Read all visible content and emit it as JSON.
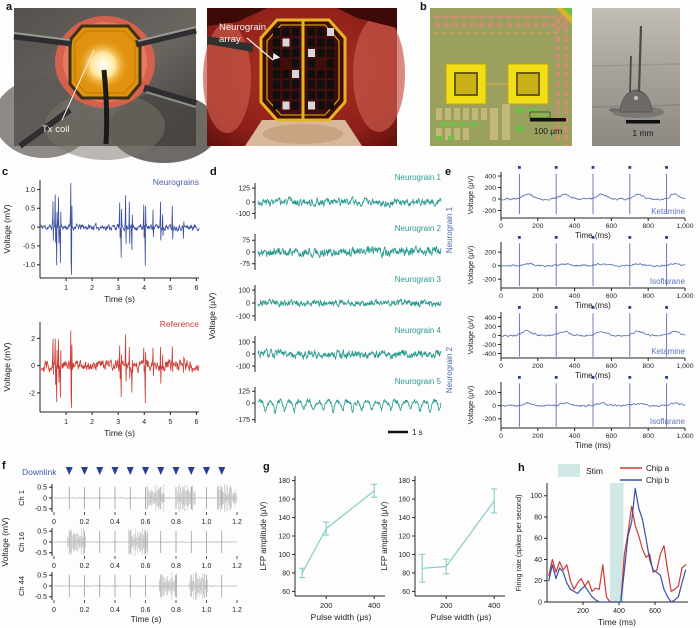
{
  "panel_labels": {
    "a": "a",
    "b": "b",
    "c": "c",
    "d": "d",
    "e": "e",
    "f": "f",
    "g": "g",
    "h": "h"
  },
  "photos": {
    "tx_coil": "Tx coil",
    "array_line1": "Neurograin",
    "array_line2": "array",
    "scale_100um": "100 μm",
    "scale_1mm": "1 mm"
  },
  "chart_data": [
    {
      "id": "c_top",
      "type": "spike_trace",
      "svg": "c-top",
      "chart_type": "line",
      "color": "#3a4da0",
      "corner_label": "Neurograins",
      "corner_color": "#4a5fae",
      "ylabel": "Voltage (mV)",
      "xlabel": "Time (s)",
      "xlim": [
        0,
        6.1
      ],
      "ylim": [
        -1.35,
        1.25
      ],
      "margins": {
        "l": 40,
        "t": 14,
        "r": 6,
        "b": 30
      },
      "yticks": [
        {
          "v": 1.0,
          "l": "1.0"
        },
        {
          "v": 0.5,
          "l": "0.5"
        },
        {
          "v": 0,
          "l": "0"
        },
        {
          "v": -0.5,
          "l": "-0.5"
        },
        {
          "v": -1.0,
          "l": "-1.0"
        }
      ],
      "xticks": [
        {
          "v": 1,
          "l": "1"
        },
        {
          "v": 2,
          "l": "2"
        },
        {
          "v": 3,
          "l": "3"
        },
        {
          "v": 4,
          "l": "4"
        },
        {
          "v": 5,
          "l": "5"
        },
        {
          "v": 6,
          "l": "6"
        }
      ],
      "trace": {
        "seed": 11,
        "n": 430,
        "amp": 0.065,
        "smooth": 0.5,
        "spikes": [
          [
            0.5,
            0.72
          ],
          [
            0.58,
            0.88
          ],
          [
            0.64,
            -0.95
          ],
          [
            0.71,
            0.82
          ],
          [
            0.78,
            -0.88
          ],
          [
            1.18,
            1.15
          ],
          [
            1.21,
            -1.25
          ],
          [
            3.05,
            0.66
          ],
          [
            3.11,
            -0.82
          ],
          [
            3.28,
            0.82
          ],
          [
            3.42,
            0.72
          ],
          [
            3.52,
            -0.62
          ],
          [
            3.98,
            0.52
          ],
          [
            4.04,
            -1.05
          ],
          [
            4.33,
            0.45
          ],
          [
            4.62,
            0.7
          ],
          [
            4.7,
            0.34
          ],
          [
            5.08,
            0.55
          ],
          [
            5.5,
            -0.32
          ]
        ]
      }
    },
    {
      "id": "c_bottom",
      "type": "spike_trace",
      "svg": "c-bottom",
      "chart_type": "line",
      "color": "#cc3b33",
      "corner_label": "Reference",
      "corner_color": "#cc3b33",
      "ylabel": "Voltage (mV)",
      "xlabel": "Time (s)",
      "xlim": [
        0,
        6.1
      ],
      "ylim": [
        -3.4,
        3.2
      ],
      "margins": {
        "l": 40,
        "t": 16,
        "r": 6,
        "b": 44
      },
      "yticks": [
        {
          "v": 2,
          "l": "2"
        },
        {
          "v": 0,
          "l": "0"
        },
        {
          "v": -2,
          "l": "-2"
        }
      ],
      "xticks": [
        {
          "v": 1,
          "l": "1"
        },
        {
          "v": 2,
          "l": "2"
        },
        {
          "v": 3,
          "l": "3"
        },
        {
          "v": 4,
          "l": "4"
        },
        {
          "v": 5,
          "l": "5"
        },
        {
          "v": 6,
          "l": "6"
        }
      ],
      "trace": {
        "seed": 29,
        "n": 430,
        "amp": 0.32,
        "smooth": 0.5,
        "spikes": [
          [
            0.5,
            1.7
          ],
          [
            0.58,
            2.1
          ],
          [
            0.64,
            -2.3
          ],
          [
            0.71,
            2.0
          ],
          [
            0.78,
            -2.1
          ],
          [
            1.18,
            2.8
          ],
          [
            1.21,
            -3.0
          ],
          [
            3.05,
            1.6
          ],
          [
            3.11,
            -2.0
          ],
          [
            3.28,
            2.0
          ],
          [
            3.42,
            1.7
          ],
          [
            3.52,
            -1.5
          ],
          [
            3.98,
            1.2
          ],
          [
            4.04,
            -2.5
          ],
          [
            4.33,
            1.1
          ],
          [
            4.62,
            1.7
          ],
          [
            4.7,
            0.8
          ],
          [
            5.08,
            1.3
          ],
          [
            5.5,
            -0.8
          ]
        ]
      }
    },
    {
      "id": "d",
      "type": "trace_stack",
      "svg": "d",
      "chart_type": "line",
      "color": "#2a9a8f",
      "ylabel": "Voltage (μV)",
      "scalebar_label": "1 s",
      "duration": 9,
      "n": 520,
      "traces": [
        {
          "label": "Neurograin 1",
          "yticks": [
            {
              "v": 125,
              "l": "125"
            },
            {
              "v": 0,
              "l": "0"
            },
            {
              "v": -100,
              "l": "-100"
            }
          ],
          "ylim": [
            -150,
            170
          ],
          "seed": 3,
          "amp": 26,
          "smooth": 0.55
        },
        {
          "label": "Neurograin 2",
          "yticks": [
            {
              "v": 75,
              "l": "75"
            },
            {
              "v": 0,
              "l": "0"
            },
            {
              "v": -75,
              "l": "-75"
            }
          ],
          "ylim": [
            -115,
            115
          ],
          "seed": 17,
          "amp": 22,
          "smooth": 0.6
        },
        {
          "label": "Neurograin 3",
          "yticks": [
            {
              "v": 100,
              "l": "100"
            },
            {
              "v": 0,
              "l": "0"
            },
            {
              "v": -100,
              "l": "-100"
            }
          ],
          "ylim": [
            -140,
            140
          ],
          "seed": 23,
          "amp": 20,
          "smooth": 0.5
        },
        {
          "label": "Neurograin 4",
          "yticks": [
            {
              "v": 100,
              "l": "100"
            },
            {
              "v": 0,
              "l": "0"
            },
            {
              "v": -100,
              "l": "-100"
            }
          ],
          "ylim": [
            -150,
            150
          ],
          "seed": 31,
          "amp": 26,
          "smooth": 0.6
        },
        {
          "label": "Neurograin 5",
          "yticks": [
            {
              "v": 125,
              "l": "125"
            },
            {
              "v": 0,
              "l": "0"
            },
            {
              "v": -175,
              "l": "-175"
            }
          ],
          "ylim": [
            -210,
            170
          ],
          "seed": 41,
          "amp": 22,
          "smooth": 0.55,
          "osc": {
            "freq": 2.1,
            "amp": 55
          }
        }
      ]
    },
    {
      "id": "e",
      "type": "evoked_stack",
      "svg": "e",
      "chart_type": "line",
      "trace_color": "#5a6fb5",
      "dot_color": "#253e8f",
      "cond_color": "#5b74c4",
      "group_color": "#4a66b0",
      "ylabel": "Voltage (μV)",
      "xlabel": "Time (ms)",
      "group_labels": [
        "Neurograin 1",
        "Neurograin 2"
      ],
      "xlim": [
        0,
        1000
      ],
      "xticks": [
        {
          "v": 0,
          "l": "0"
        },
        {
          "v": 200,
          "l": "200"
        },
        {
          "v": 400,
          "l": "400"
        },
        {
          "v": 600,
          "l": "600"
        },
        {
          "v": 800,
          "l": "800"
        },
        {
          "v": 1000,
          "l": "1,000"
        }
      ],
      "spike_times": [
        100,
        300,
        500,
        700,
        900
      ],
      "subplots": [
        {
          "group": 0,
          "cond": "Ketamine",
          "yticks": [
            {
              "v": 400,
              "l": "400"
            },
            {
              "v": 200,
              "l": "200"
            },
            {
              "v": 0,
              "l": "0"
            },
            {
              "v": -200,
              "l": "-200"
            }
          ],
          "ylim": [
            -330,
            470
          ],
          "spike_hi": 440,
          "spike_lo": -260,
          "bump": 85,
          "noise": 14,
          "seed": 51
        },
        {
          "group": 0,
          "cond": "Isoflurane",
          "yticks": [
            {
              "v": 200,
              "l": "200"
            },
            {
              "v": 0,
              "l": "0"
            },
            {
              "v": -200,
              "l": "-200"
            }
          ],
          "ylim": [
            -330,
            350
          ],
          "spike_hi": 330,
          "spike_lo": -300,
          "bump": 28,
          "noise": 11,
          "seed": 57
        },
        {
          "group": 1,
          "cond": "Ketamine",
          "yticks": [
            {
              "v": 400,
              "l": "400"
            },
            {
              "v": 200,
              "l": "200"
            },
            {
              "v": 0,
              "l": "0"
            },
            {
              "v": -200,
              "l": "-200"
            },
            {
              "v": -400,
              "l": "-400"
            }
          ],
          "ylim": [
            -500,
            520
          ],
          "spike_hi": 490,
          "spike_lo": -470,
          "bump": 95,
          "noise": 16,
          "seed": 63
        },
        {
          "group": 1,
          "cond": "Isoflurane",
          "yticks": [
            {
              "v": 200,
              "l": "200"
            },
            {
              "v": 0,
              "l": "0"
            },
            {
              "v": -200,
              "l": "-200"
            }
          ],
          "ylim": [
            -340,
            360
          ],
          "spike_hi": 340,
          "spike_lo": -320,
          "bump": 35,
          "noise": 12,
          "seed": 71
        }
      ]
    },
    {
      "id": "f",
      "type": "stim_channels",
      "svg": "f",
      "chart_type": "line",
      "downlink_label": "Downlink",
      "downlink_color": "#3d55a8",
      "triangle_color": "#24409a",
      "trace_color": "#c4c4c4",
      "artifact_color": "#8f8f8f",
      "burst_color": "#b3b3b3",
      "ylabel": "Voltage (mV)",
      "xlabel": "Time (s)",
      "xlim": [
        0,
        1.2
      ],
      "ylim": [
        -0.65,
        0.65
      ],
      "xticks": [
        {
          "v": 0,
          "l": "0"
        },
        {
          "v": 0.2,
          "l": "0.2"
        },
        {
          "v": 0.4,
          "l": "0.4"
        },
        {
          "v": 0.6,
          "l": "0.6"
        },
        {
          "v": 0.8,
          "l": "0.8"
        },
        {
          "v": 1.0,
          "l": "1.0"
        },
        {
          "v": 1.2,
          "l": "1.2"
        }
      ],
      "yticks": [
        {
          "v": 0.5,
          "l": "0.5"
        },
        {
          "v": 0,
          "l": "0"
        },
        {
          "v": -0.5,
          "l": "-0.5"
        }
      ],
      "triangle_times": [
        0.1,
        0.2,
        0.3,
        0.4,
        0.5,
        0.6,
        0.7,
        0.8,
        0.9,
        1.0,
        1.1
      ],
      "artifact_times": [
        0.1,
        0.2,
        0.3,
        0.4,
        0.5,
        0.6,
        0.7,
        0.8,
        0.9,
        1.0,
        1.1
      ],
      "channels": [
        {
          "label": "Ch 1",
          "seed": 81,
          "bursts": [
            [
              0.61,
              0.73
            ],
            [
              0.81,
              0.93
            ],
            [
              1.07,
              1.2
            ]
          ]
        },
        {
          "label": "Ch 16",
          "seed": 87,
          "bursts": [
            [
              0.09,
              0.21
            ],
            [
              0.49,
              0.62
            ]
          ]
        },
        {
          "label": "Ch 44",
          "seed": 93,
          "bursts": [
            [
              0.69,
              0.81
            ],
            [
              0.89,
              1.01
            ]
          ]
        }
      ]
    },
    {
      "id": "g_left",
      "type": "errorbar",
      "svg": "g-left",
      "chart_type": "line",
      "color": "#85ccc7",
      "ylabel": "LFP amplitude (μV)",
      "xlabel": "Pulse width (μs)",
      "axis_x": 37,
      "ylabel_x": 8,
      "x": [
        100,
        200,
        400
      ],
      "y": [
        80,
        128,
        169
      ],
      "yerr": [
        5,
        7,
        7
      ],
      "xlim": [
        70,
        445
      ],
      "ylim": [
        55,
        185
      ],
      "xticks": [
        {
          "v": 200,
          "l": "200"
        },
        {
          "v": 400,
          "l": "400"
        }
      ],
      "yticks": [
        {
          "v": 180,
          "l": "180"
        },
        {
          "v": 160,
          "l": "160"
        },
        {
          "v": 140,
          "l": "140"
        },
        {
          "v": 120,
          "l": "120"
        },
        {
          "v": 100,
          "l": "100"
        },
        {
          "v": 80,
          "l": "80"
        },
        {
          "v": 60,
          "l": "60"
        }
      ]
    },
    {
      "id": "g_right",
      "type": "errorbar",
      "svg": "g-right",
      "chart_type": "line",
      "color": "#85ccc7",
      "ylabel": "LFP amplitude (μV)",
      "xlabel": "Pulse width (μs)",
      "axis_x": 35,
      "ylabel_x": 7,
      "x": [
        100,
        200,
        400
      ],
      "y": [
        85,
        87,
        158
      ],
      "yerr": [
        15,
        8,
        13
      ],
      "xlim": [
        70,
        445
      ],
      "ylim": [
        55,
        185
      ],
      "xticks": [
        {
          "v": 200,
          "l": "200"
        },
        {
          "v": 400,
          "l": "400"
        }
      ],
      "yticks": [
        {
          "v": 180,
          "l": "180"
        },
        {
          "v": 160,
          "l": "160"
        },
        {
          "v": 140,
          "l": "140"
        },
        {
          "v": 120,
          "l": "120"
        },
        {
          "v": 100,
          "l": "100"
        },
        {
          "v": 80,
          "l": "80"
        },
        {
          "v": 60,
          "l": "60"
        }
      ]
    },
    {
      "id": "h",
      "type": "rate",
      "svg": "h",
      "chart_type": "line",
      "legend": {
        "stim": "Stim",
        "a": "Chip a",
        "b": "Chip b"
      },
      "stim_fill": "#cfe8e5",
      "stim_window": [
        350,
        425
      ],
      "ylabel": "Firing rate (spikes per second)",
      "xlabel": "Time (ms)",
      "xlim": [
        0,
        780
      ],
      "ylim": [
        0,
        112
      ],
      "xticks": [
        {
          "v": 200,
          "l": "200"
        },
        {
          "v": 400,
          "l": "400"
        },
        {
          "v": 600,
          "l": "600"
        }
      ],
      "yticks": [
        {
          "v": 0,
          "l": "0"
        },
        {
          "v": 20,
          "l": "20"
        },
        {
          "v": 40,
          "l": "40"
        },
        {
          "v": 60,
          "l": "60"
        },
        {
          "v": 80,
          "l": "80"
        },
        {
          "v": 100,
          "l": "100"
        }
      ],
      "x_start": 10,
      "x_step": 20,
      "series": [
        {
          "name": "Chip a",
          "color": "#cc3b33",
          "values": [
            25,
            40,
            28,
            38,
            30,
            35,
            20,
            12,
            18,
            22,
            15,
            20,
            10,
            13,
            12,
            35,
            5,
            0,
            0,
            0,
            0,
            45,
            65,
            90,
            72,
            62,
            50,
            42,
            45,
            28,
            30,
            45,
            53,
            30,
            10,
            12,
            15,
            32,
            35
          ]
        },
        {
          "name": "Chip b",
          "color": "#3c4fa3",
          "values": [
            20,
            35,
            22,
            32,
            28,
            18,
            12,
            10,
            8,
            12,
            15,
            10,
            5,
            2,
            0,
            0,
            0,
            0,
            0,
            0,
            0,
            30,
            62,
            75,
            107,
            88,
            78,
            60,
            40,
            30,
            28,
            25,
            12,
            5,
            0,
            2,
            5,
            18,
            30
          ]
        }
      ]
    }
  ]
}
